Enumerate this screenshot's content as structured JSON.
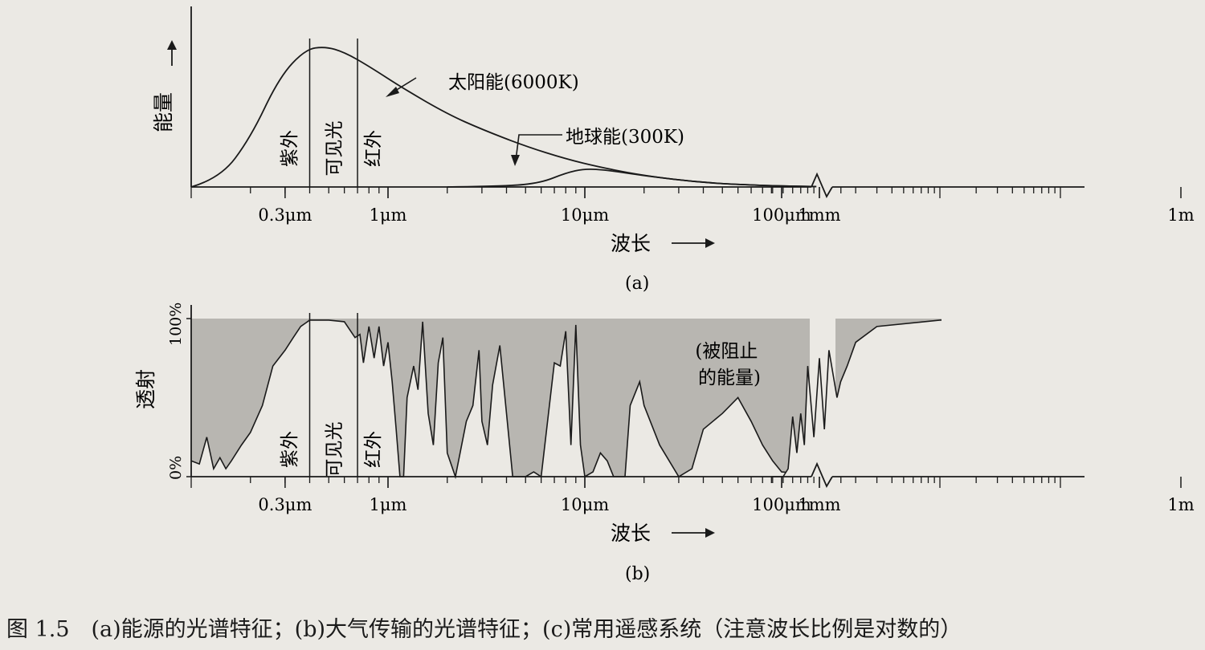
{
  "caption": "图 1.5　(a)能源的光谱特征；(b)大气传输的光谱特征；(c)常用遥感系统（注意波长比例是对数的）",
  "chart_data": [
    {
      "type": "line",
      "panel_label": "(a)",
      "xlabel": "波长",
      "ylabel": "能量",
      "xscale": "log",
      "x_unit": "μm",
      "x_axis_break_between": [
        200,
        400
      ],
      "xticks": [
        {
          "value": 0.3,
          "label": "0.3μm"
        },
        {
          "value": 1,
          "label": "1μm"
        },
        {
          "value": 10,
          "label": "10μm"
        },
        {
          "value": 100,
          "label": "100μm"
        },
        {
          "value": 1000,
          "label": "1mm"
        },
        {
          "value": 1000000,
          "label": "1m"
        }
      ],
      "regions": [
        {
          "label": "紫外",
          "from": 0.1,
          "to": 0.4
        },
        {
          "label": "可见光",
          "from": 0.4,
          "to": 0.7
        },
        {
          "label": "红外",
          "from": 0.7,
          "to": 1.0
        }
      ],
      "series": [
        {
          "name": "太阳能(6000K)",
          "x": [
            0.1,
            0.14,
            0.2,
            0.28,
            0.38,
            0.48,
            0.6,
            0.8,
            1.2,
            2,
            3,
            5,
            8,
            12,
            20,
            40,
            80,
            150
          ],
          "y": [
            0,
            6,
            35,
            78,
            98,
            100,
            96,
            86,
            70,
            52,
            41,
            29,
            20,
            14,
            8,
            3,
            1,
            0.3
          ]
        },
        {
          "name": "地球能(300K)",
          "x": [
            2,
            4,
            6,
            8,
            10,
            13,
            20,
            40,
            80,
            150
          ],
          "y": [
            0,
            0.5,
            3,
            10,
            13,
            12,
            8,
            3,
            1,
            0.3
          ]
        }
      ]
    },
    {
      "type": "area",
      "panel_label": "(b)",
      "xlabel": "波长",
      "ylabel": "透射",
      "xscale": "log",
      "x_unit": "μm",
      "x_axis_break_between": [
        200,
        400
      ],
      "yticks": [
        {
          "value": 0,
          "label": "0%"
        },
        {
          "value": 100,
          "label": "100%"
        }
      ],
      "xticks": [
        {
          "value": 0.3,
          "label": "0.3μm"
        },
        {
          "value": 1,
          "label": "1μm"
        },
        {
          "value": 10,
          "label": "10μm"
        },
        {
          "value": 100,
          "label": "100μm"
        },
        {
          "value": 1000,
          "label": "1mm"
        },
        {
          "value": 1000000,
          "label": "1m"
        }
      ],
      "regions": [
        {
          "label": "紫外",
          "from": 0.1,
          "to": 0.4
        },
        {
          "label": "可见光",
          "from": 0.4,
          "to": 0.7
        },
        {
          "label": "红外",
          "from": 0.7,
          "to": 1.0
        }
      ],
      "annotations": [
        {
          "label": "(被阻止\n的能量)",
          "x": 120,
          "y": 70
        }
      ],
      "series": [
        {
          "x": [
            0.1,
            0.11,
            0.12,
            0.13,
            0.14,
            0.15,
            0.16,
            0.18,
            0.2,
            0.23,
            0.26,
            0.3,
            0.33,
            0.36,
            0.4,
            0.45,
            0.5,
            0.6,
            0.68,
            0.72,
            0.75,
            0.8,
            0.85,
            0.9,
            0.95,
            1.0,
            1.05,
            1.1,
            1.15,
            1.2,
            1.25,
            1.35,
            1.42,
            1.5,
            1.6,
            1.7,
            1.8,
            1.9,
            2.0,
            2.2,
            2.5,
            2.7,
            2.9,
            3.0,
            3.2,
            3.4,
            3.7,
            4.0,
            4.3,
            4.6,
            5.0,
            5.5,
            6.0,
            7.0,
            7.5,
            8.0,
            8.5,
            9.0,
            9.5,
            10,
            11,
            12,
            13,
            14,
            16,
            17,
            19,
            20,
            24,
            30,
            35,
            40,
            50,
            60,
            70,
            80,
            90,
            100,
            200,
            400,
            500,
            550,
            600,
            650,
            700,
            750,
            800,
            900,
            1000,
            1100,
            1200,
            1400,
            1500,
            1700,
            2000,
            3000,
            10000,
            30000,
            100000,
            1000000,
            10000000
          ],
          "y": [
            10,
            8,
            25,
            5,
            12,
            5,
            10,
            20,
            28,
            45,
            70,
            80,
            88,
            95,
            99,
            99,
            99,
            98,
            88,
            90,
            72,
            95,
            75,
            95,
            70,
            85,
            60,
            30,
            0,
            0,
            50,
            70,
            55,
            98,
            40,
            20,
            72,
            88,
            15,
            0,
            35,
            45,
            80,
            35,
            20,
            58,
            83,
            40,
            0,
            0,
            0,
            3,
            0,
            72,
            70,
            92,
            20,
            96,
            20,
            0,
            3,
            15,
            10,
            0,
            0,
            45,
            60,
            45,
            20,
            0,
            5,
            30,
            40,
            50,
            35,
            20,
            10,
            3,
            0,
            0,
            0,
            5,
            38,
            15,
            40,
            20,
            70,
            25,
            75,
            30,
            80,
            50,
            60,
            70,
            85,
            95,
            99,
            100,
            100,
            100,
            100
          ]
        }
      ]
    }
  ]
}
